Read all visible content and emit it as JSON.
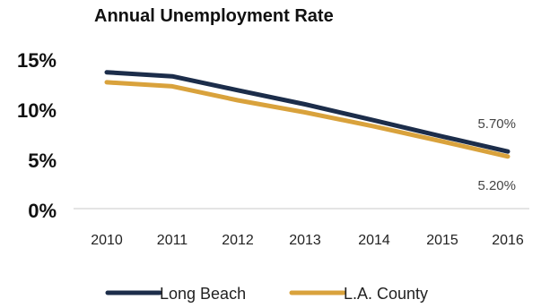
{
  "chart_data": {
    "type": "line",
    "title": "Annual Unemployment Rate",
    "xlabel": "",
    "ylabel": "",
    "x": [
      "2010",
      "2011",
      "2012",
      "2013",
      "2014",
      "2015",
      "2016"
    ],
    "y_ticks": [
      "0%",
      "5%",
      "10%",
      "15%"
    ],
    "ylim": [
      0,
      15
    ],
    "grid": false,
    "legend_position": "bottom",
    "series": [
      {
        "name": "Long Beach",
        "color": "#1c2d4a",
        "values": [
          13.6,
          13.2,
          11.8,
          10.4,
          8.8,
          7.2,
          5.7
        ]
      },
      {
        "name": "L.A. County",
        "color": "#d9a23c",
        "values": [
          12.6,
          12.2,
          10.8,
          9.6,
          8.2,
          6.7,
          5.2
        ]
      }
    ],
    "annotations": [
      {
        "series": "Long Beach",
        "x": "2016",
        "text": "5.70%"
      },
      {
        "series": "L.A. County",
        "x": "2016",
        "text": "5.20%"
      }
    ]
  }
}
